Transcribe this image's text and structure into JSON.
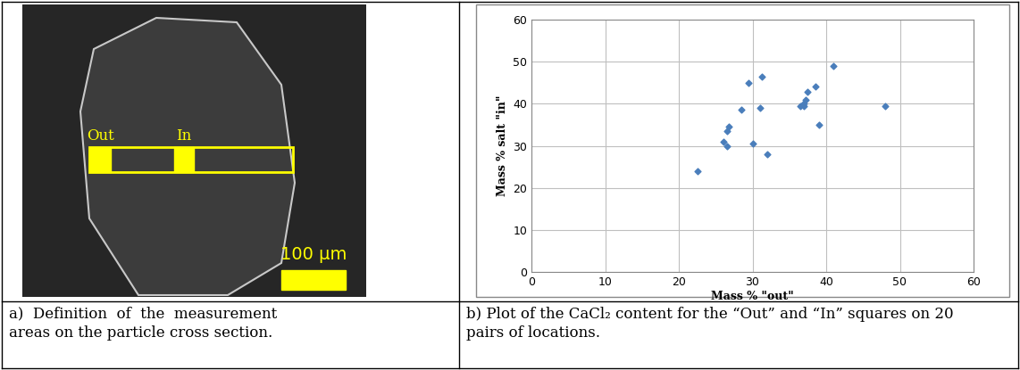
{
  "image": {
    "labels": [
      "Out",
      "In"
    ],
    "scale_bar": "100 μm"
  },
  "chart_data": {
    "type": "scatter",
    "x_label": "Mass % \"out\"",
    "y_label": "Mass % salt \"in\"",
    "x": [
      22.5,
      26,
      26.5,
      26.8,
      26.5,
      28.5,
      29.5,
      30,
      31,
      31.3,
      32,
      36.5,
      37,
      37,
      37.2,
      37.5,
      38.5,
      39,
      41,
      48
    ],
    "values": [
      24,
      31,
      33.5,
      34.5,
      30,
      38.5,
      45,
      30.5,
      39,
      46.5,
      28,
      39.5,
      39.5,
      40,
      41,
      42.8,
      44,
      35,
      49,
      39.5
    ],
    "color": "#4a7ebb",
    "marker": "diamond",
    "xlim": [
      0,
      60
    ],
    "xticks": [
      0,
      10,
      20,
      30,
      40,
      50,
      60
    ],
    "ylim": [
      0,
      60
    ],
    "yticks": [
      0,
      10,
      20,
      30,
      40,
      50,
      60
    ],
    "grid": true
  },
  "captions": [
    [
      "a)  Definition  of  the  measurement",
      "areas on the particle cross section."
    ],
    [
      "b) Plot of the CaCl₂ content for the “Out” and “In” squares on 20",
      "pairs of locations."
    ]
  ]
}
